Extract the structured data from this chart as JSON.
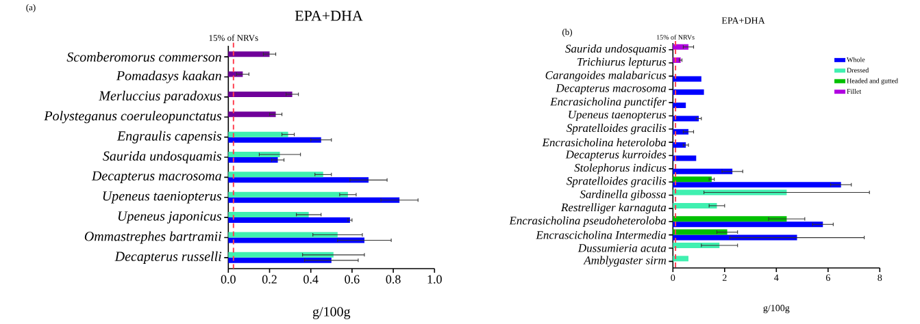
{
  "chart_data": [
    {
      "type": "bar",
      "orientation": "horizontal",
      "title": "EPA+DHA",
      "xlabel": "g/100g",
      "annotations": [
        "(a)"
      ],
      "categories": [
        "Scomberomorus commerson",
        "Pomadasys kaakan",
        "Merluccius paradoxus",
        "Polysteganus coeruleopunctatus",
        "Engraulis capensis",
        "Saurida undosquamis",
        "Decapterus macrosoma",
        "Upeneus taeniopterus",
        "Upeneus japonicus",
        "Ommastrephes bartramii",
        "Decapterus russelli"
      ],
      "series": [
        {
          "color": "#0000ff",
          "values": [
            null,
            null,
            null,
            null,
            0.45,
            0.24,
            0.68,
            0.83,
            0.59,
            0.66,
            0.5
          ],
          "errors": [
            null,
            null,
            null,
            null,
            0.05,
            0.03,
            0.09,
            0.09,
            0.01,
            0.13,
            0.13
          ]
        },
        {
          "color": "#40f0b0",
          "values": [
            null,
            null,
            null,
            null,
            0.29,
            0.25,
            0.46,
            0.58,
            0.39,
            0.53,
            0.51
          ],
          "errors": [
            null,
            null,
            null,
            null,
            0.03,
            0.1,
            0.04,
            0.04,
            0.06,
            0.12,
            0.15
          ]
        },
        {
          "color": "#70009a",
          "values": [
            0.2,
            0.07,
            0.31,
            0.23,
            null,
            null,
            null,
            null,
            null,
            null,
            null
          ],
          "errors": [
            0.03,
            0.03,
            0.03,
            0.03,
            null,
            null,
            null,
            null,
            null,
            null,
            null
          ]
        }
      ],
      "xlim": [
        0,
        1.0
      ],
      "xticks": [
        {
          "value": 0,
          "label": "0.0"
        },
        0.2,
        0.4,
        0.6,
        0.8,
        {
          "value": 1.0,
          "label": "1.0"
        }
      ],
      "ref_lines": [
        {
          "axis": "x",
          "value": 0.025,
          "label": "15% of NRVs",
          "color": "#ff4050",
          "line_style": "dashed"
        }
      ],
      "legend": false
    },
    {
      "type": "bar",
      "orientation": "horizontal",
      "title": "EPA+DHA",
      "xlabel": "g/100g",
      "annotations": [
        "(b)"
      ],
      "categories": [
        "Saurida undosquamis",
        "Trichiurus lepturus",
        "Carangoides malabaricus",
        "Decapterus macrosoma",
        "Encrasicholina punctifer",
        "Upeneus taenopterus",
        "Spratelloides gracilis",
        "Encrasicholina heteroloba",
        "Decapterus kurroides",
        "Stolephorus indicus",
        "Spratelloides gracilis",
        "Sardinella gibossa",
        "Restrelliger karnaguta",
        "Encrasicholina pseudoheteroloba",
        "Encrascicholina Intermedia",
        "Dussumieria acuta",
        "Amblygaster sirm"
      ],
      "series": [
        {
          "name": "Whole",
          "color": "#0000ff",
          "values": [
            null,
            null,
            1.1,
            1.2,
            0.5,
            1.0,
            0.6,
            0.5,
            0.9,
            2.3,
            6.5,
            null,
            null,
            5.8,
            4.8,
            null,
            null
          ],
          "errors": [
            null,
            null,
            null,
            null,
            null,
            0.1,
            0.2,
            0.1,
            null,
            0.4,
            0.4,
            null,
            null,
            0.4,
            2.6,
            null,
            null
          ]
        },
        {
          "name": "Dressed",
          "color": "#40f0b0",
          "values": [
            null,
            null,
            null,
            null,
            null,
            null,
            null,
            null,
            null,
            null,
            null,
            4.4,
            1.7,
            null,
            null,
            1.8,
            0.6
          ],
          "errors": [
            null,
            null,
            null,
            null,
            null,
            null,
            null,
            null,
            null,
            null,
            null,
            3.2,
            0.3,
            null,
            null,
            0.7,
            null
          ]
        },
        {
          "name": "Headed and gutted",
          "color": "#00c000",
          "values": [
            null,
            null,
            null,
            null,
            null,
            null,
            null,
            null,
            null,
            null,
            1.5,
            null,
            null,
            4.4,
            2.1,
            null,
            null
          ],
          "errors": [
            null,
            null,
            null,
            null,
            null,
            null,
            null,
            null,
            null,
            null,
            0.1,
            null,
            null,
            0.7,
            0.4,
            null,
            null
          ]
        },
        {
          "name": "Fillet",
          "color": "#b000e0",
          "values": [
            0.6,
            0.3,
            null,
            null,
            null,
            null,
            null,
            null,
            null,
            null,
            null,
            null,
            null,
            null,
            null,
            null,
            null
          ],
          "errors": [
            0.2,
            0.05,
            null,
            null,
            null,
            null,
            null,
            null,
            null,
            null,
            null,
            null,
            null,
            null,
            null,
            null,
            null
          ]
        }
      ],
      "xlim": [
        0,
        8
      ],
      "xticks": [
        0,
        2,
        4,
        6,
        8
      ],
      "ref_lines": [
        {
          "axis": "x",
          "value": 0.1,
          "label": "15% of NRVs",
          "color": "#ff4050",
          "line_style": "dashed"
        }
      ],
      "legend": "top right"
    }
  ]
}
